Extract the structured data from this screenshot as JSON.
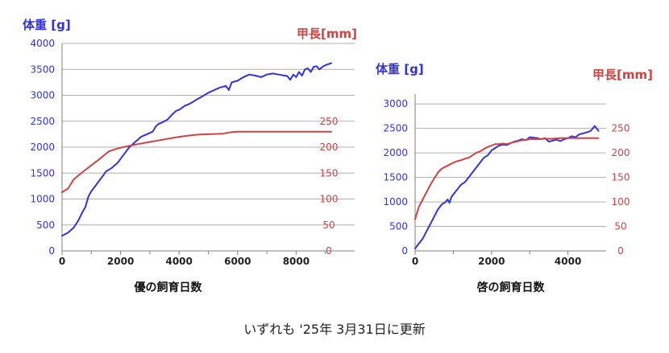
{
  "footer_text": "いずれも '25年 3月31日に更新",
  "colors": {
    "weight": "#3333dd",
    "length": "#cc4444",
    "grid": "#b0b0b0",
    "axis": "#808080"
  },
  "chart_data": [
    {
      "type": "line",
      "xlabel": "優の飼育日数",
      "ylabel_left": "体重 [g]",
      "ylabel_right": "甲長[mm]",
      "xlim": [
        0,
        10000
      ],
      "xticks": [
        0,
        2000,
        4000,
        6000,
        8000
      ],
      "ylim_left": [
        0,
        4000
      ],
      "yticks_left": [
        0,
        500,
        1000,
        1500,
        2000,
        2500,
        3000,
        3500,
        4000
      ],
      "ylim_right": [
        0,
        400
      ],
      "yticks_right": [
        0,
        50,
        100,
        150,
        200,
        250
      ],
      "grid": true,
      "series": [
        {
          "axis": "left",
          "color": "#3333dd",
          "x": [
            0,
            200,
            400,
            550,
            700,
            800,
            900,
            1000,
            1200,
            1400,
            1500,
            1700,
            1900,
            2100,
            2300,
            2500,
            2700,
            2900,
            3100,
            3200,
            3300,
            3400,
            3600,
            3800,
            3900,
            4000,
            4200,
            4300,
            4400,
            4500,
            4600,
            4800,
            5000,
            5200,
            5400,
            5600,
            5700,
            5800,
            6000,
            6200,
            6400,
            6600,
            6800,
            7000,
            7200,
            7400,
            7600,
            7700,
            7800,
            7900,
            8000,
            8100,
            8200,
            8300,
            8400,
            8500,
            8600,
            8700,
            8800,
            8900,
            9000,
            9100,
            9200
          ],
          "y": [
            290,
            350,
            450,
            580,
            750,
            850,
            1050,
            1150,
            1300,
            1450,
            1530,
            1600,
            1700,
            1850,
            2000,
            2100,
            2200,
            2250,
            2300,
            2400,
            2450,
            2470,
            2530,
            2650,
            2700,
            2720,
            2800,
            2820,
            2850,
            2880,
            2920,
            2980,
            3050,
            3100,
            3150,
            3180,
            3100,
            3250,
            3280,
            3350,
            3400,
            3380,
            3350,
            3400,
            3420,
            3400,
            3380,
            3370,
            3300,
            3400,
            3350,
            3450,
            3380,
            3500,
            3520,
            3450,
            3550,
            3560,
            3500,
            3550,
            3580,
            3600,
            3620
          ]
        },
        {
          "axis": "right",
          "color": "#cc4444",
          "x": [
            0,
            200,
            400,
            700,
            1000,
            1300,
            1600,
            2000,
            2500,
            3000,
            3500,
            4000,
            4300,
            4600,
            5000,
            5500,
            5800,
            6000,
            6500,
            7000,
            7500,
            8000,
            8500,
            9000,
            9200
          ],
          "y": [
            113,
            120,
            138,
            152,
            165,
            178,
            192,
            199,
            205,
            210,
            215,
            220,
            222,
            224,
            225,
            226,
            229,
            230,
            230,
            230,
            230,
            230,
            230,
            230,
            230
          ]
        }
      ]
    },
    {
      "type": "line",
      "xlabel": "啓の飼育日数",
      "ylabel_left": "体重 [g]",
      "ylabel_right": "甲長[mm]",
      "xlim": [
        0,
        5000
      ],
      "xticks": [
        0,
        2000,
        4000
      ],
      "ylim_left": [
        0,
        3200
      ],
      "yticks_left": [
        0,
        500,
        1000,
        1500,
        2000,
        2500,
        3000
      ],
      "ylim_right": [
        0,
        320
      ],
      "yticks_right": [
        0,
        50,
        100,
        150,
        200,
        250
      ],
      "grid": true,
      "series": [
        {
          "axis": "left",
          "color": "#3333dd",
          "x": [
            0,
            100,
            200,
            300,
            400,
            500,
            600,
            700,
            800,
            850,
            900,
            950,
            1000,
            1100,
            1200,
            1300,
            1400,
            1500,
            1600,
            1700,
            1800,
            1900,
            2000,
            2100,
            2200,
            2300,
            2400,
            2500,
            2600,
            2700,
            2800,
            2900,
            3000,
            3100,
            3200,
            3300,
            3400,
            3500,
            3600,
            3700,
            3800,
            3900,
            4000,
            4100,
            4200,
            4300,
            4400,
            4500,
            4600,
            4700,
            4800
          ],
          "y": [
            50,
            150,
            250,
            400,
            550,
            700,
            850,
            950,
            1000,
            1050,
            980,
            1100,
            1150,
            1250,
            1350,
            1400,
            1500,
            1600,
            1700,
            1800,
            1900,
            1950,
            2050,
            2100,
            2150,
            2170,
            2160,
            2200,
            2230,
            2250,
            2280,
            2260,
            2320,
            2310,
            2300,
            2280,
            2300,
            2230,
            2250,
            2270,
            2240,
            2280,
            2300,
            2340,
            2320,
            2380,
            2400,
            2420,
            2450,
            2550,
            2450
          ]
        },
        {
          "axis": "right",
          "color": "#cc4444",
          "x": [
            0,
            100,
            200,
            300,
            400,
            500,
            600,
            700,
            800,
            900,
            1000,
            1100,
            1200,
            1300,
            1400,
            1500,
            1600,
            1700,
            1800,
            1900,
            2000,
            2100,
            2200,
            2300,
            2400,
            2500,
            2600,
            2700,
            2800,
            2900,
            3000,
            3200,
            3400,
            3600,
            3800,
            4000,
            4200,
            4400,
            4600,
            4800
          ],
          "y": [
            65,
            90,
            105,
            120,
            135,
            148,
            160,
            168,
            172,
            176,
            180,
            183,
            185,
            188,
            190,
            195,
            200,
            203,
            208,
            212,
            215,
            218,
            218,
            219,
            218,
            220,
            222,
            224,
            226,
            227,
            228,
            228,
            229,
            229,
            230,
            230,
            230,
            230,
            230,
            230
          ]
        }
      ]
    }
  ]
}
